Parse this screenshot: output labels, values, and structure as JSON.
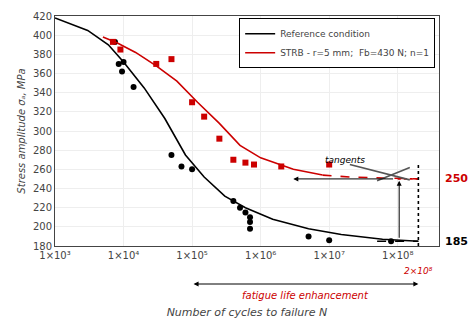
{
  "chart_data": {
    "type": "line",
    "xlabel": "Number of cycles to failure N",
    "ylabel": "Stress amplitude σₐ, MPa",
    "log": "x",
    "xlim": [
      1000,
      400000000
    ],
    "ylim": [
      180,
      420
    ],
    "xticks": [
      {
        "value": 1000,
        "label": "1×10³"
      },
      {
        "value": 10000,
        "label": "1×10⁴"
      },
      {
        "value": 100000,
        "label": "1×10⁵"
      },
      {
        "value": 1000000,
        "label": "1×10⁶"
      },
      {
        "value": 10000000,
        "label": "1×10⁷"
      },
      {
        "value": 100000000,
        "label": "1×10⁸"
      }
    ],
    "yticks": [
      180,
      200,
      220,
      240,
      260,
      280,
      300,
      320,
      340,
      360,
      380,
      400,
      420
    ],
    "grid": true,
    "legend": "upper right",
    "series": [
      {
        "type": "scatter",
        "marker": "circle",
        "color": "#000000",
        "x": [
          7500,
          8500,
          9500,
          10000,
          14000,
          50000,
          70000,
          100000,
          400000,
          500000,
          600000,
          700000,
          700000,
          700000,
          5000000,
          10000000,
          80000000
        ],
        "values": [
          393,
          370,
          362,
          372,
          346,
          275,
          263,
          260,
          227,
          220,
          215,
          210,
          205,
          198,
          190,
          186,
          185
        ]
      },
      {
        "type": "line",
        "name": "Reference condition",
        "color": "#000000",
        "line_style": "solid",
        "x": [
          1000,
          3000,
          6000,
          10000,
          20000,
          40000,
          80000,
          150000,
          300000,
          600000,
          1500000,
          5000000,
          15000000,
          60000000,
          200000000
        ],
        "values": [
          418,
          405,
          390,
          372,
          345,
          313,
          275,
          252,
          232,
          220,
          208,
          198,
          192,
          187,
          185
        ]
      },
      {
        "type": "line",
        "color": "#000000",
        "line_style": "dashed",
        "x": [
          50000000,
          200000000
        ],
        "values": [
          185,
          185
        ]
      },
      {
        "type": "scatter",
        "marker": "square",
        "color": "#cc0000",
        "x": [
          7000,
          9000,
          30000,
          50000,
          100000,
          150000,
          250000,
          400000,
          600000,
          800000,
          2000000,
          10000000
        ],
        "values": [
          393,
          385,
          370,
          375,
          330,
          315,
          292,
          270,
          267,
          265,
          263,
          265
        ]
      },
      {
        "type": "line",
        "name": "STRB - r=5 mm;  Fb=430 N; n=1",
        "color": "#cc0000",
        "line_style": "solid",
        "x": [
          5000,
          8000,
          15000,
          30000,
          60000,
          120000,
          250000,
          500000,
          1000000,
          3000000,
          8000000
        ],
        "values": [
          398,
          392,
          382,
          368,
          352,
          330,
          308,
          285,
          272,
          260,
          254
        ]
      },
      {
        "type": "line",
        "color": "#cc0000",
        "line_style": "dashed",
        "x": [
          8000000,
          20000000,
          60000000,
          200000000
        ],
        "values": [
          254,
          252,
          251,
          250
        ]
      },
      {
        "type": "line",
        "color": "#cc0000",
        "line_style": "dotted",
        "x": [
          100000000,
          200000000
        ],
        "values": [
          250,
          250
        ]
      },
      {
        "type": "line",
        "color": "#555555",
        "line_style": "solid",
        "x": [
          20000000,
          150000000
        ],
        "values": [
          265,
          249
        ]
      },
      {
        "type": "line",
        "color": "#555555",
        "line_style": "solid",
        "x": [
          50000000,
          150000000
        ],
        "values": [
          248,
          262
        ]
      },
      {
        "type": "arrow",
        "color": "#000000",
        "x": [
          90000000,
          3000000
        ],
        "values": [
          250,
          250
        ]
      },
      {
        "type": "arrow",
        "color": "#000000",
        "x": [
          105000000,
          105000000
        ],
        "values": [
          187,
          248
        ]
      },
      {
        "type": "line",
        "color": "#000000",
        "line_style": "dotted",
        "x": [
          200000000,
          200000000
        ],
        "values": [
          180,
          265
        ]
      }
    ],
    "annotations": [
      {
        "text": "tangents",
        "x": 8000000,
        "y": 262,
        "color": "#000000"
      },
      {
        "text": "250",
        "y": 250,
        "color": "#cc0000"
      },
      {
        "text": "185",
        "y": 185,
        "color": "#000000"
      },
      {
        "text": "2×10⁸",
        "x": 200000000,
        "color": "#cc0000"
      },
      {
        "text": "fatigue life enhancement",
        "x": [
          100000,
          200000000
        ],
        "color": "#cc0000"
      }
    ]
  }
}
